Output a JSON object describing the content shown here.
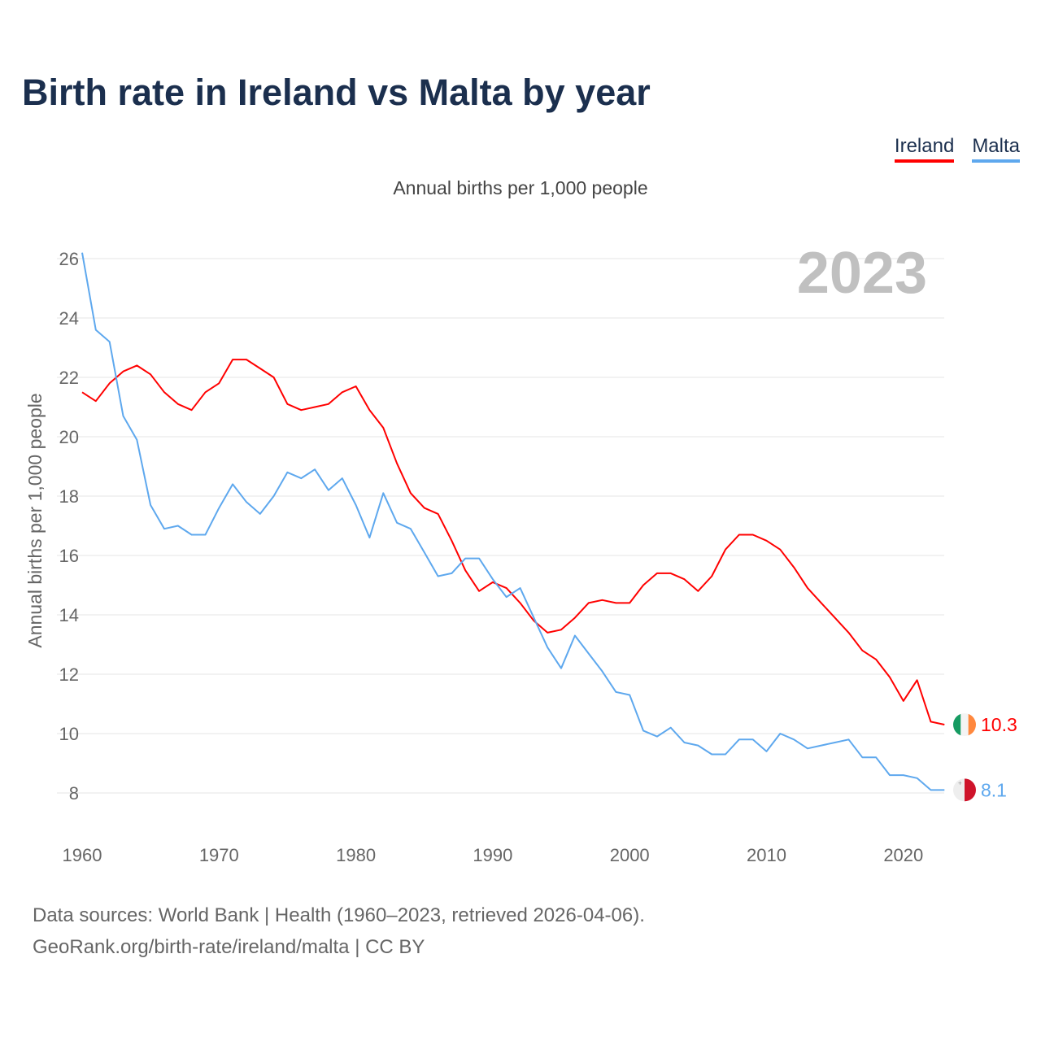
{
  "title": "Birth rate in Ireland vs Malta by year",
  "subtitle": "Annual births per 1,000 people",
  "year_label": "2023",
  "footer": {
    "line1": "Data sources: World Bank | Health (1960–2023, retrieved 2026-04-06).",
    "line2": "GeoRank.org/birth-rate/ireland/malta | CC BY"
  },
  "chart_data": {
    "type": "line",
    "title": "Birth rate in Ireland vs Malta by year",
    "xlabel": "",
    "ylabel": "Annual births per 1,000 people",
    "xlim": [
      1960,
      2023
    ],
    "ylim": [
      7,
      27
    ],
    "yticks": [
      8,
      10,
      12,
      14,
      16,
      18,
      20,
      22,
      24,
      26
    ],
    "xticks": [
      1960,
      1970,
      1980,
      1990,
      2000,
      2010,
      2020
    ],
    "grid": true,
    "legend_position": "top-right",
    "x_start": 1960,
    "series": [
      {
        "name": "Ireland",
        "color": "#ff0000",
        "end_label": "10.3",
        "values": [
          21.5,
          21.2,
          21.8,
          22.2,
          22.4,
          22.1,
          21.5,
          21.1,
          20.9,
          21.5,
          21.8,
          22.6,
          22.6,
          22.3,
          22.0,
          21.1,
          20.9,
          21.0,
          21.1,
          21.5,
          21.7,
          20.9,
          20.3,
          19.1,
          18.1,
          17.6,
          17.4,
          16.5,
          15.5,
          14.8,
          15.1,
          14.9,
          14.4,
          13.8,
          13.4,
          13.5,
          13.9,
          14.4,
          14.5,
          14.4,
          14.4,
          15.0,
          15.4,
          15.4,
          15.2,
          14.8,
          15.3,
          16.2,
          16.7,
          16.7,
          16.5,
          16.2,
          15.6,
          14.9,
          14.4,
          13.9,
          13.4,
          12.8,
          12.5,
          11.9,
          11.1,
          11.8,
          10.4,
          10.3
        ]
      },
      {
        "name": "Malta",
        "color": "#5ea8ee",
        "end_label": "8.1",
        "values": [
          26.2,
          23.6,
          23.2,
          20.7,
          19.9,
          17.7,
          16.9,
          17.0,
          16.7,
          16.7,
          17.6,
          18.4,
          17.8,
          17.4,
          18.0,
          18.8,
          18.6,
          18.9,
          18.2,
          18.6,
          17.7,
          16.6,
          18.1,
          17.1,
          16.9,
          16.1,
          15.3,
          15.4,
          15.9,
          15.9,
          15.2,
          14.6,
          14.9,
          13.9,
          12.9,
          12.2,
          13.3,
          12.7,
          12.1,
          11.4,
          11.3,
          10.1,
          9.9,
          10.2,
          9.7,
          9.6,
          9.3,
          9.3,
          9.8,
          9.8,
          9.4,
          10.0,
          9.8,
          9.5,
          9.6,
          9.7,
          9.8,
          9.2,
          9.2,
          8.6,
          8.6,
          8.5,
          8.1,
          8.1
        ]
      }
    ]
  }
}
